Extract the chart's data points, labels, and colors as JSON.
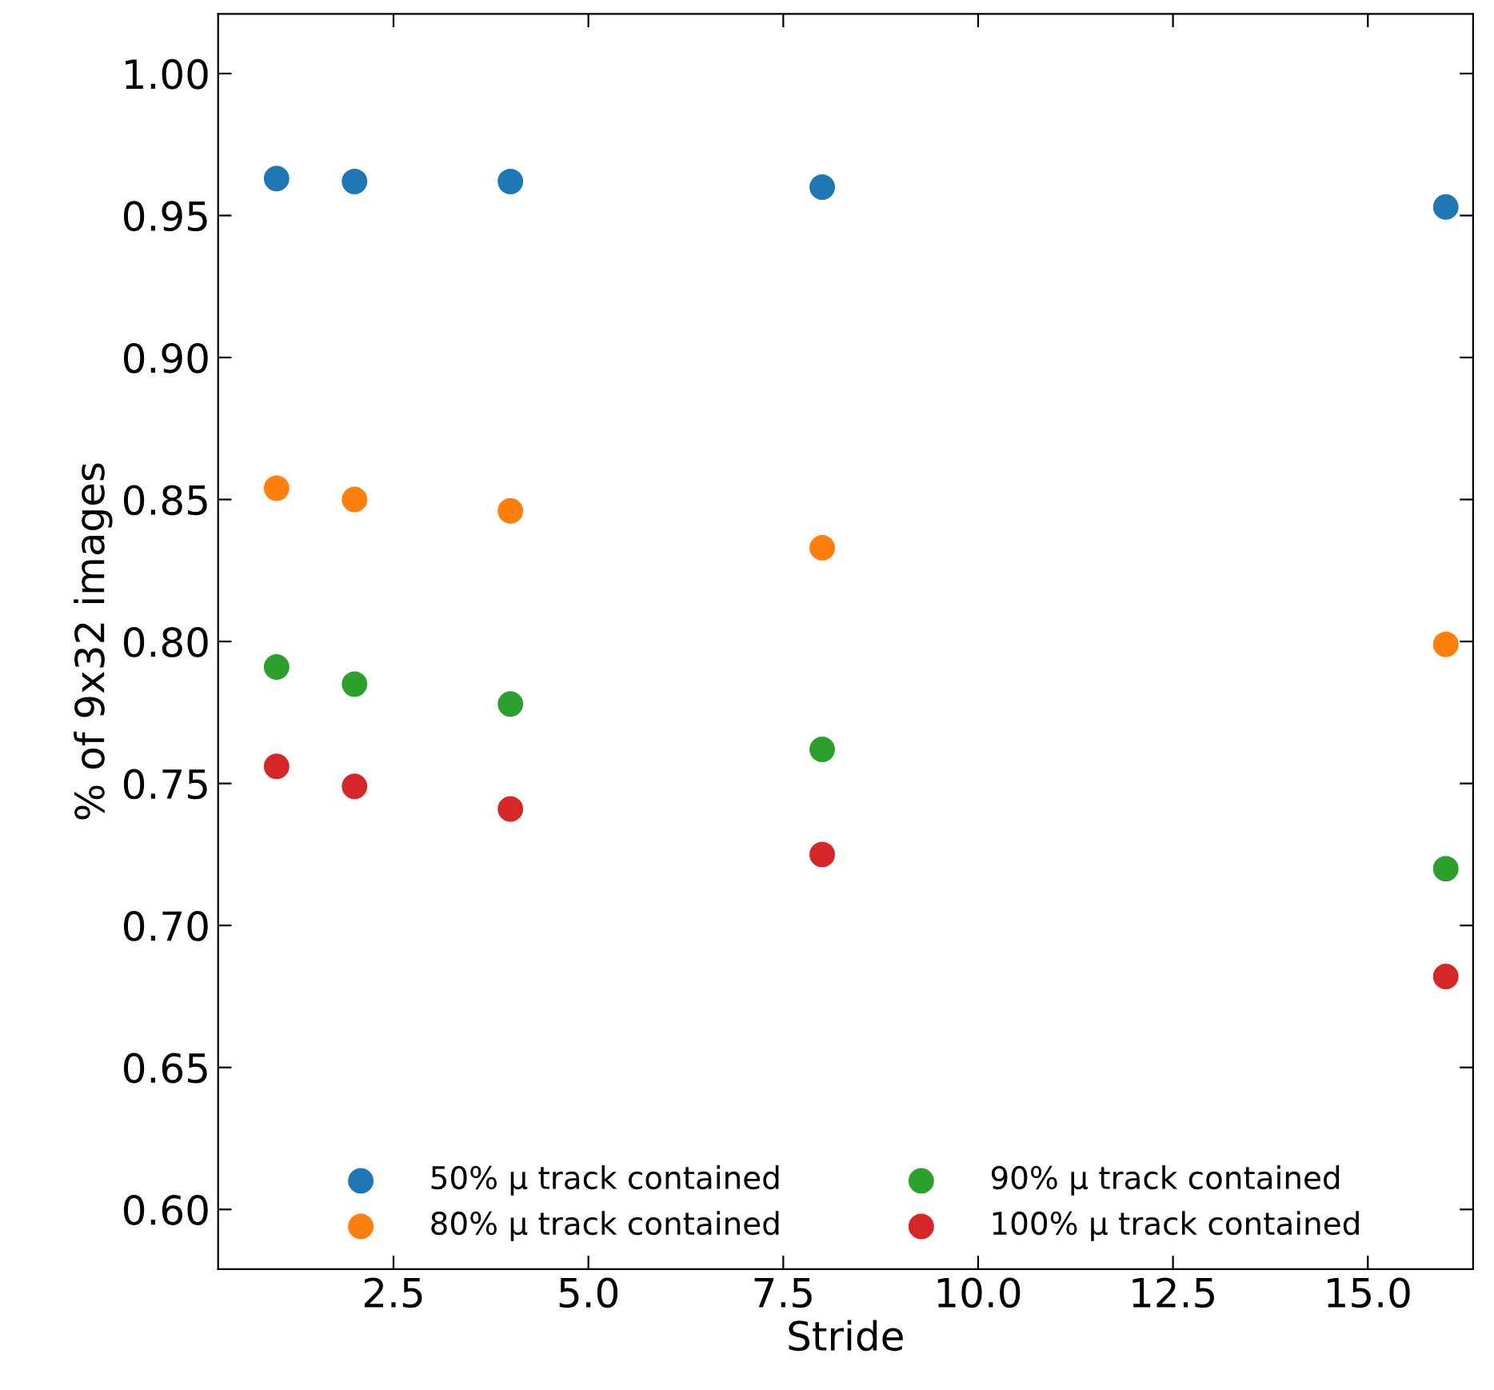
{
  "chart_data": {
    "type": "scatter",
    "xlabel": "Stride",
    "ylabel": "% of 9x32 images",
    "x": [
      1,
      2,
      4,
      8,
      16
    ],
    "series": [
      {
        "name": "50% μ track contained",
        "color": "#1f77b4",
        "values": [
          0.963,
          0.962,
          0.962,
          0.96,
          0.953
        ]
      },
      {
        "name": "80% μ track contained",
        "color": "#ff7f0e",
        "values": [
          0.854,
          0.85,
          0.846,
          0.833,
          0.799
        ]
      },
      {
        "name": "90% μ track contained",
        "color": "#2ca02c",
        "values": [
          0.791,
          0.785,
          0.778,
          0.762,
          0.72
        ]
      },
      {
        "name": "100% μ track contained",
        "color": "#d62728",
        "values": [
          0.756,
          0.749,
          0.741,
          0.725,
          0.682
        ]
      }
    ],
    "xlim": [
      0.25,
      16.35
    ],
    "ylim": [
      0.579,
      1.021
    ],
    "xticks": [
      {
        "value": 2.5,
        "label": "2.5"
      },
      {
        "value": 5,
        "label": "5.0"
      },
      {
        "value": 7.5,
        "label": "7.5"
      },
      {
        "value": 10,
        "label": "10.0"
      },
      {
        "value": 12.5,
        "label": "12.5"
      },
      {
        "value": 15,
        "label": "15.0"
      }
    ],
    "yticks": [
      {
        "value": 0.6,
        "label": "0.60"
      },
      {
        "value": 0.65,
        "label": "0.65"
      },
      {
        "value": 0.7,
        "label": "0.70"
      },
      {
        "value": 0.75,
        "label": "0.75"
      },
      {
        "value": 0.8,
        "label": "0.80"
      },
      {
        "value": 0.85,
        "label": "0.85"
      },
      {
        "value": 0.9,
        "label": "0.90"
      },
      {
        "value": 0.95,
        "label": "0.95"
      },
      {
        "value": 1.0,
        "label": "1.00"
      }
    ],
    "marker": "circle",
    "legend": "bottom",
    "grid": false
  }
}
